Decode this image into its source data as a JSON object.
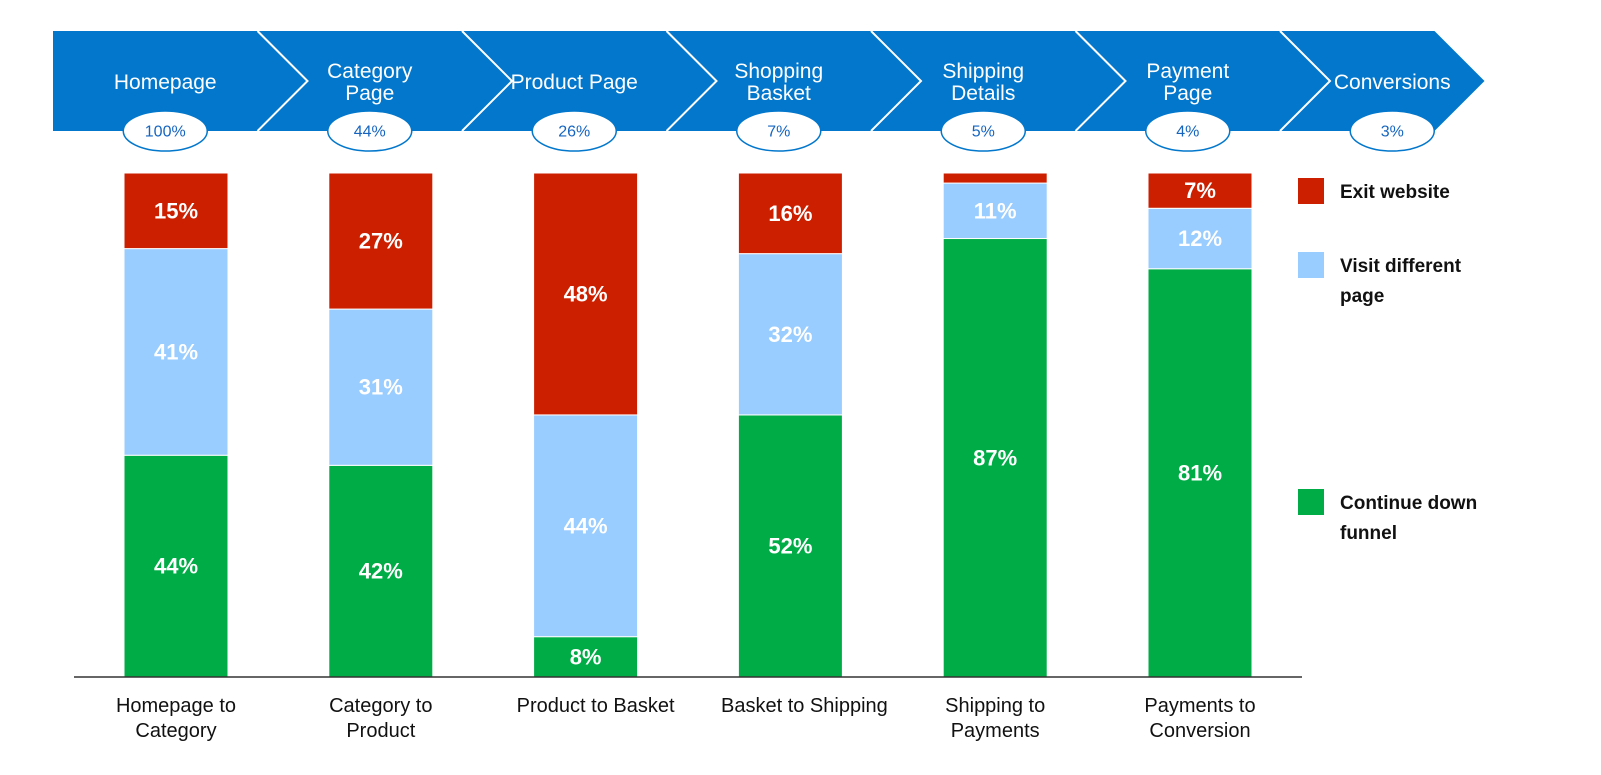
{
  "funnel": {
    "stages": [
      {
        "label": [
          "Homepage"
        ],
        "pct": "100%"
      },
      {
        "label": [
          "Category",
          "Page"
        ],
        "pct": "44%"
      },
      {
        "label": [
          "Product Page"
        ],
        "pct": "26%"
      },
      {
        "label": [
          "Shopping",
          "Basket"
        ],
        "pct": "7%"
      },
      {
        "label": [
          "Shipping",
          "Details"
        ],
        "pct": "5%"
      },
      {
        "label": [
          "Payment",
          "Page"
        ],
        "pct": "4%"
      },
      {
        "label": [
          "Conversions"
        ],
        "pct": "3%"
      }
    ]
  },
  "chart_data": {
    "type": "bar",
    "stacked": true,
    "categories": [
      [
        "Homepage to",
        "Category"
      ],
      [
        "Category to",
        "Product"
      ],
      [
        "Product to Basket"
      ],
      [
        "Basket to Shipping"
      ],
      [
        "Shipping to",
        "Payments"
      ],
      [
        "Payments to",
        "Conversion"
      ]
    ],
    "series": [
      {
        "name": "Continue down funnel",
        "color": "#00ac45",
        "values": [
          44,
          42,
          8,
          52,
          87,
          81
        ],
        "labels": [
          "44%",
          "42%",
          "8%",
          "52%",
          "87%",
          "81%"
        ]
      },
      {
        "name": "Visit different page",
        "color": "#99ccff",
        "values": [
          41,
          31,
          44,
          32,
          11,
          12
        ],
        "labels": [
          "41%",
          "31%",
          "44%",
          "32%",
          "11%",
          "12%"
        ]
      },
      {
        "name": "Exit website",
        "color": "#cc1f00",
        "values": [
          15,
          27,
          48,
          16,
          2,
          7
        ],
        "labels": [
          "15%",
          "27%",
          "48%",
          "16%",
          "",
          "7%"
        ]
      }
    ],
    "legend": [
      {
        "label": [
          "Exit website"
        ],
        "color": "#cc1f00"
      },
      {
        "label": [
          "Visit different",
          "page"
        ],
        "color": "#99ccff"
      },
      {
        "label": [
          "Continue down",
          "funnel"
        ],
        "color": "#00ac45"
      }
    ],
    "legend_position": "right",
    "ylim": [
      0,
      100
    ],
    "grid": false,
    "title": "",
    "xlabel": "",
    "ylabel": ""
  },
  "colors": {
    "funnel_blue": "#0277cc",
    "badge_text": "#1565c0",
    "exit": "#cc1f00",
    "visit": "#99ccff",
    "continue": "#00ac45"
  }
}
